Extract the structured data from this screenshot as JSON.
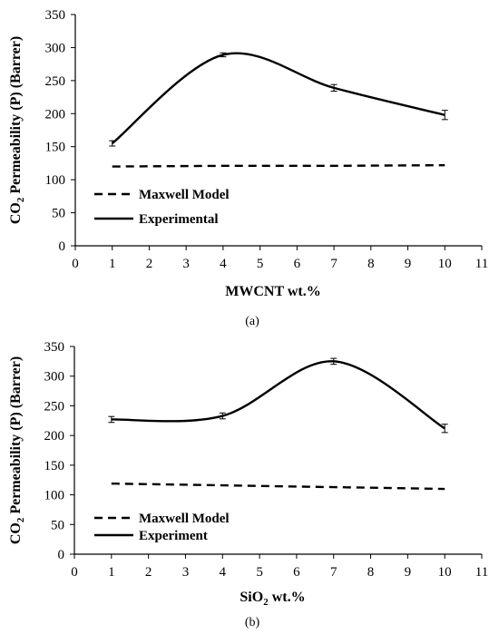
{
  "chart_data": [
    {
      "type": "line",
      "panel": "(a)",
      "xlabel": "MWCNT wt.%",
      "ylabel_parts": [
        "CO",
        "2",
        " Permeability (P) (Barrer)"
      ],
      "xlim": [
        0,
        11
      ],
      "ylim": [
        0,
        350
      ],
      "x_ticks": [
        0,
        1,
        2,
        3,
        4,
        5,
        6,
        7,
        8,
        9,
        10,
        11
      ],
      "y_ticks": [
        0,
        50,
        100,
        150,
        200,
        250,
        300,
        350
      ],
      "grid": false,
      "legend_position": "lower-left",
      "series": [
        {
          "name": "Maxwell Model",
          "style": "dashed",
          "x": [
            1,
            4,
            7,
            10
          ],
          "y": [
            120,
            121,
            121,
            122
          ]
        },
        {
          "name": "Experimental",
          "style": "solid",
          "smooth": true,
          "x": [
            1,
            4,
            7,
            10
          ],
          "y": [
            155,
            289,
            239,
            198
          ],
          "error": [
            4,
            3,
            5,
            7
          ]
        }
      ]
    },
    {
      "type": "line",
      "panel": "(b)",
      "xlabel_parts": [
        "SiO",
        "2",
        " wt.%"
      ],
      "ylabel_parts": [
        "CO",
        "2",
        " Permeability (P) (Barrer)"
      ],
      "xlim": [
        0,
        11
      ],
      "ylim": [
        0,
        350
      ],
      "x_ticks": [
        0,
        1,
        2,
        3,
        4,
        5,
        6,
        7,
        8,
        9,
        10,
        11
      ],
      "y_ticks": [
        0,
        50,
        100,
        150,
        200,
        250,
        300,
        350
      ],
      "grid": false,
      "legend_position": "lower-left",
      "series": [
        {
          "name": "Maxwell Model",
          "style": "dashed",
          "x": [
            1,
            4,
            7,
            10
          ],
          "y": [
            119,
            116,
            113,
            110
          ]
        },
        {
          "name": "Experiment",
          "style": "solid",
          "smooth": true,
          "x": [
            1,
            4,
            7,
            10
          ],
          "y": [
            227,
            233,
            325,
            212
          ],
          "error": [
            5,
            5,
            5,
            7
          ]
        }
      ]
    }
  ],
  "colors": {
    "line": "#000000",
    "axis": "#000000",
    "background": "#ffffff"
  }
}
